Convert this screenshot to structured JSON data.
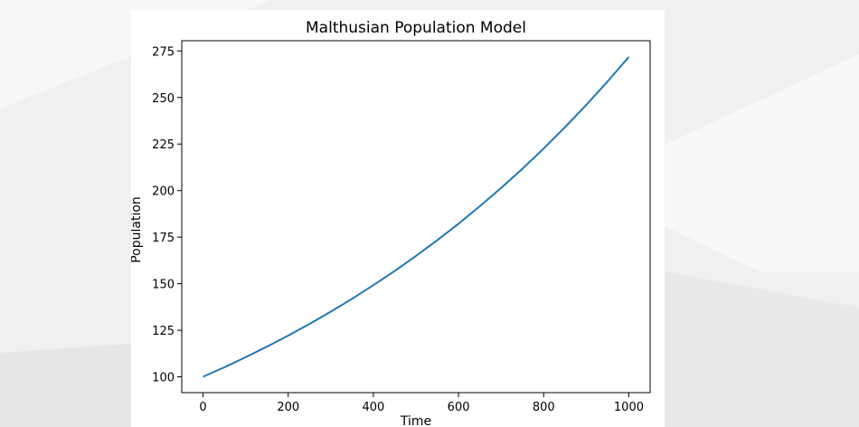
{
  "chart_data": {
    "type": "line",
    "title": "Malthusian Population Model",
    "xlabel": "Time",
    "ylabel": "Population",
    "xlim": [
      -50,
      1050
    ],
    "ylim": [
      91.5,
      280.5
    ],
    "xticks": [
      0,
      200,
      400,
      600,
      800,
      1000
    ],
    "yticks": [
      100,
      125,
      150,
      175,
      200,
      225,
      250,
      275
    ],
    "xtick_labels": [
      "0",
      "200",
      "400",
      "600",
      "800",
      "1000"
    ],
    "ytick_labels": [
      "100",
      "125",
      "150",
      "175",
      "200",
      "225",
      "250",
      "275"
    ],
    "grid": false,
    "line_color": "#1f77b4",
    "series": [
      {
        "x": [
          0,
          50,
          100,
          150,
          200,
          250,
          300,
          350,
          400,
          450,
          500,
          550,
          600,
          650,
          700,
          750,
          800,
          850,
          900,
          950,
          1000
        ],
        "y": [
          100,
          105.1,
          110.5,
          116.2,
          122.1,
          128.4,
          135.0,
          141.9,
          149.2,
          156.8,
          164.9,
          173.3,
          182.2,
          191.6,
          201.4,
          211.7,
          222.6,
          234.0,
          246.0,
          258.6,
          271.8
        ]
      }
    ]
  }
}
